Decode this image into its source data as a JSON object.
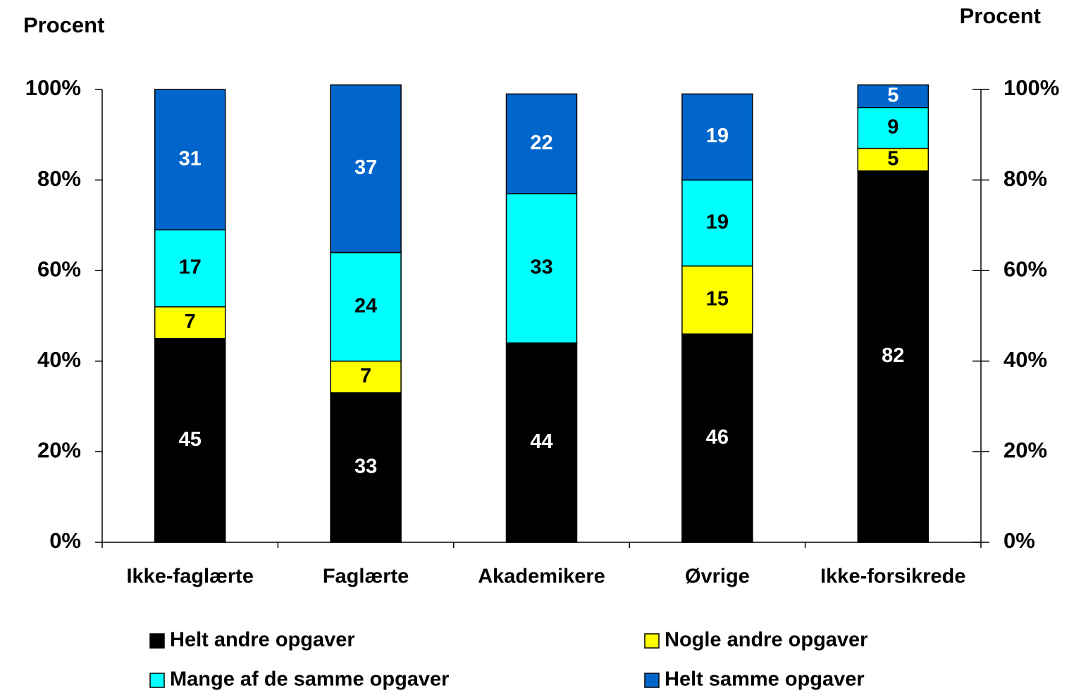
{
  "chart_data": {
    "type": "stacked_bar",
    "y_label": "Procent",
    "y2_label": "Procent",
    "categories": [
      "Ikke-faglærte",
      "Faglærte",
      "Akademikere",
      "Øvrige",
      "Ikke-forsikrede"
    ],
    "series": [
      {
        "name": "Helt andre opgaver",
        "color": "#000000",
        "label_color": "#ffffff",
        "values": [
          45,
          33,
          44,
          46,
          82
        ]
      },
      {
        "name": "Nogle andre opgaver",
        "color": "#ffff00",
        "label_color": "#000000",
        "values": [
          7,
          7,
          null,
          15,
          5
        ]
      },
      {
        "name": "Mange af de samme opgaver",
        "color": "#00ffff",
        "label_color": "#000000",
        "values": [
          17,
          24,
          33,
          19,
          9
        ]
      },
      {
        "name": "Helt samme opgaver",
        "color": "#0066cc",
        "label_color": "#ffffff",
        "values": [
          31,
          37,
          22,
          19,
          5
        ]
      }
    ],
    "ylim": [
      0,
      100
    ],
    "yticks": [
      {
        "value": 0,
        "label": "0%"
      },
      {
        "value": 20,
        "label": "20%"
      },
      {
        "value": 40,
        "label": "40%"
      },
      {
        "value": 60,
        "label": "60%"
      },
      {
        "value": 80,
        "label": "80%"
      },
      {
        "value": 100,
        "label": "100%"
      }
    ],
    "y2lim": [
      0,
      100
    ],
    "y2ticks": [
      {
        "value": 0,
        "label": "0%"
      },
      {
        "value": 20,
        "label": "20%"
      },
      {
        "value": 40,
        "label": "40%"
      },
      {
        "value": 60,
        "label": "60%"
      },
      {
        "value": 80,
        "label": "80%"
      },
      {
        "value": 100,
        "label": "100%"
      }
    ],
    "legend": "bottom"
  }
}
